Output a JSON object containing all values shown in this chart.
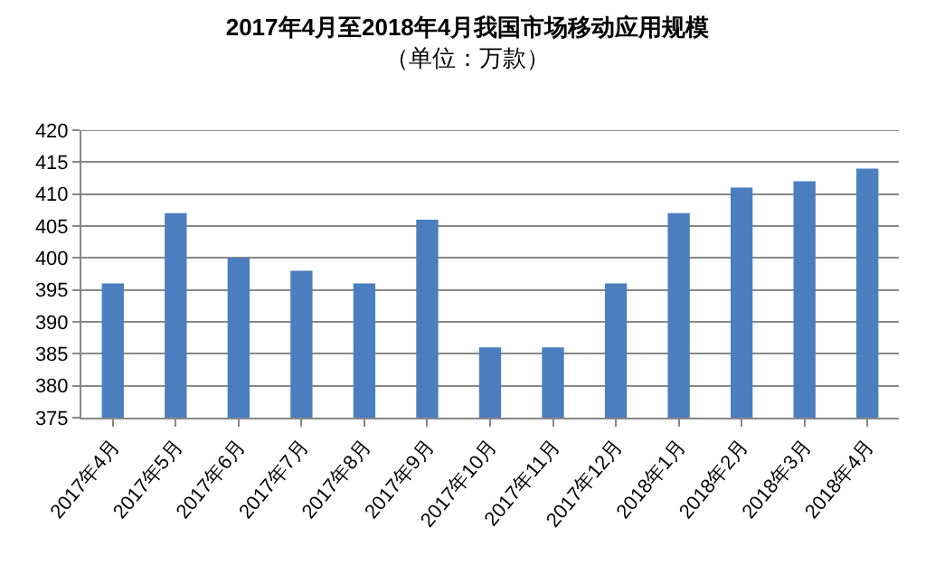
{
  "chart_data": {
    "type": "bar",
    "title": "2017年4月至2018年4月我国市场移动应用规模",
    "subtitle": "（单位：万款）",
    "categories": [
      "2017年4月",
      "2017年5月",
      "2017年6月",
      "2017年7月",
      "2017年8月",
      "2017年9月",
      "2017年10月",
      "2017年11月",
      "2017年12月",
      "2018年1月",
      "2018年2月",
      "2018年3月",
      "2018年4月"
    ],
    "values": [
      396,
      407,
      400,
      398,
      396,
      406,
      386,
      386,
      396,
      407,
      411,
      412,
      414
    ],
    "color": "#4a7ebf",
    "ylim": [
      375,
      420
    ],
    "yticks": [
      375,
      380,
      385,
      390,
      395,
      400,
      405,
      410,
      415,
      420
    ],
    "grid": "y"
  }
}
